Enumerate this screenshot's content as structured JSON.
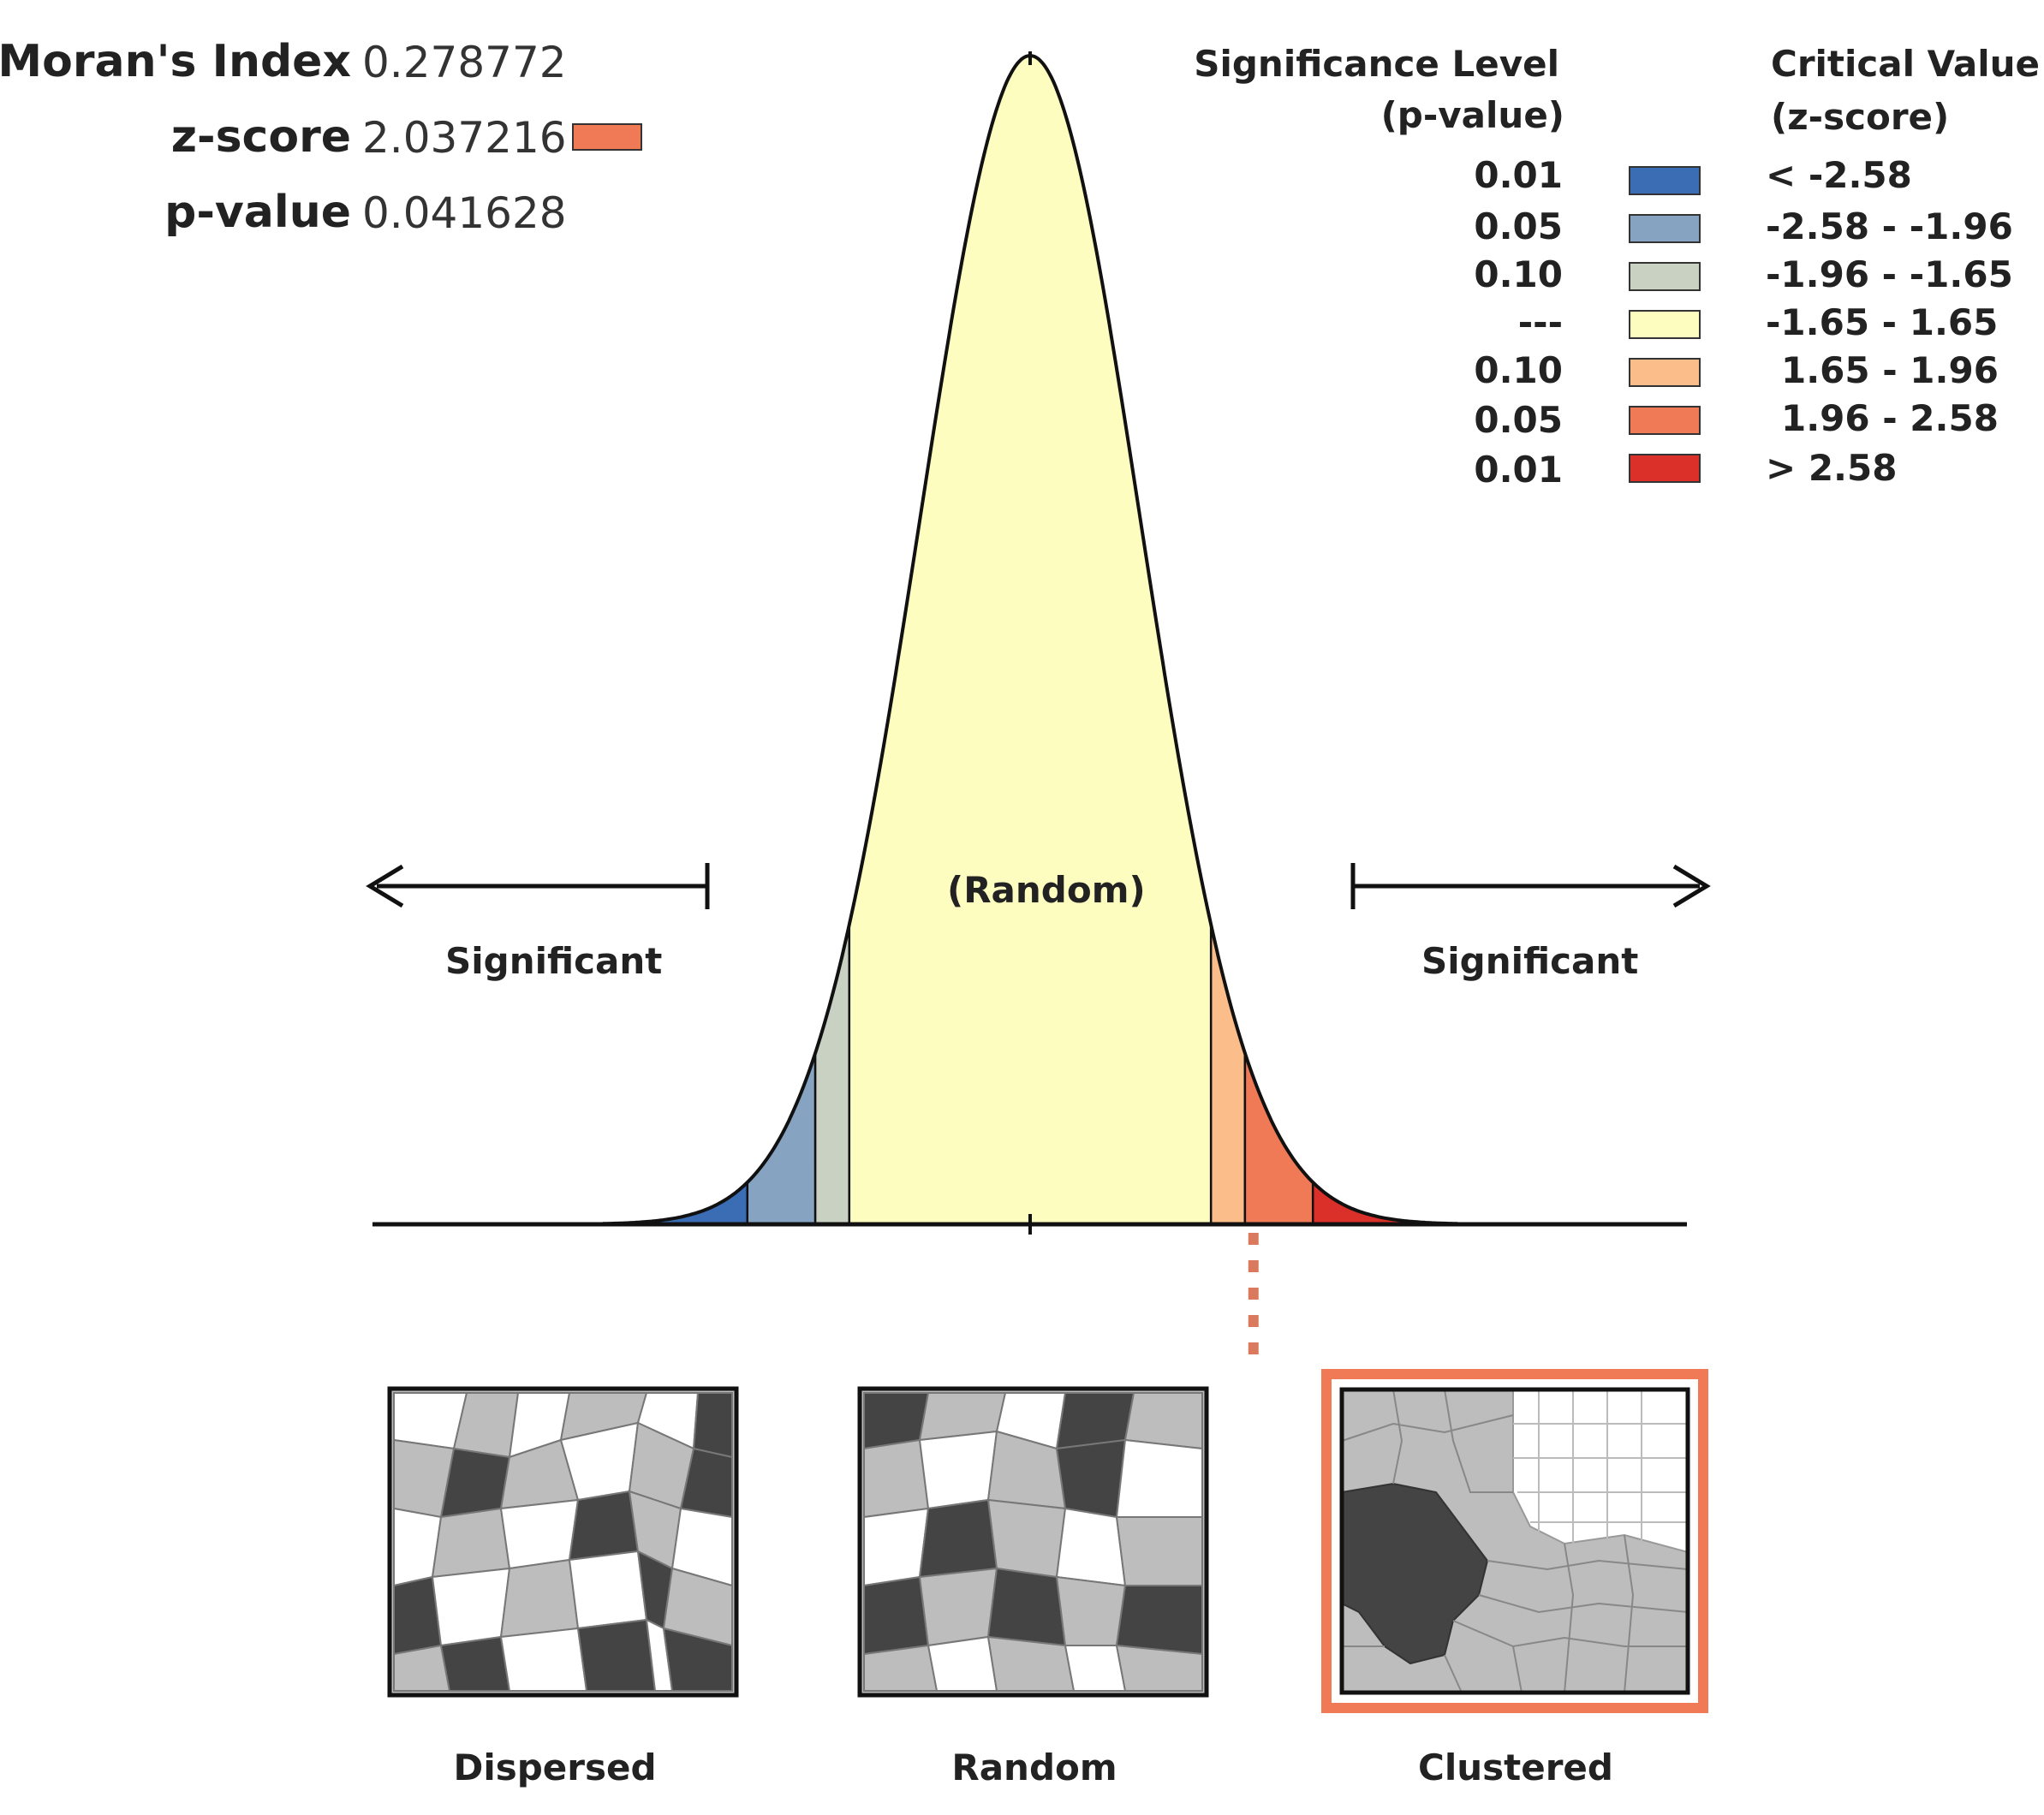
{
  "stats": {
    "moran_label": "Moran's Index",
    "moran_value": "0.278772",
    "z_label": "z-score",
    "z_value": "2.037216",
    "p_label": "p-value",
    "p_value": "0.041628",
    "result_color": "#ef7a55"
  },
  "legend": {
    "sig_header_line1": "Significance Level",
    "sig_header_line2": "(p-value)",
    "crit_header_line1": "Critical Value",
    "crit_header_line2": "(z-score)",
    "rows": [
      {
        "p": "0.01",
        "z": "< -2.58",
        "color": "#3b6db5"
      },
      {
        "p": "0.05",
        "z": "-2.58 - -1.96",
        "color": "#86a3c2"
      },
      {
        "p": "0.10",
        "z": "-1.96 - -1.65",
        "color": "#c9d1c2"
      },
      {
        "p": "---",
        "z": "-1.65 - 1.65",
        "color": "#fefdc0"
      },
      {
        "p": "0.10",
        "z": "1.65 - 1.96",
        "color": "#fbbd8a"
      },
      {
        "p": "0.05",
        "z": "1.96 - 2.58",
        "color": "#ef7a55"
      },
      {
        "p": "0.01",
        "z": "> 2.58",
        "color": "#db2f2a"
      }
    ]
  },
  "curve": {
    "center_label": "(Random)",
    "left_label": "Significant",
    "right_label": "Significant",
    "observed_z": 2.037216
  },
  "patterns": [
    {
      "label": "Dispersed"
    },
    {
      "label": "Random"
    },
    {
      "label": "Clustered",
      "highlight_color": "#ef7a55"
    }
  ]
}
